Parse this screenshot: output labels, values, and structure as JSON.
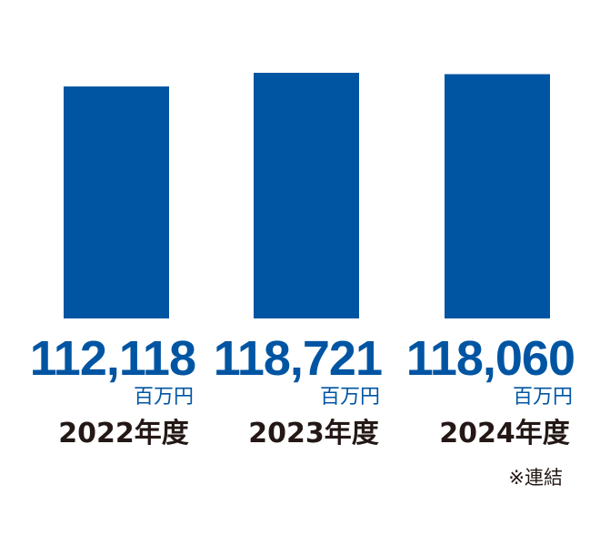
{
  "chart_data": {
    "type": "bar",
    "categories": [
      "2022年度",
      "2023年度",
      "2024年度"
    ],
    "values": [
      112118,
      118721,
      118060
    ],
    "value_labels": [
      "112,118",
      "118,721",
      "118,060"
    ],
    "unit": "百万円",
    "note": "※連結",
    "grid": false,
    "legend": "none",
    "colors": {
      "bar": "#0055A3",
      "value_text": "#0055A3",
      "category_text": "#231815",
      "note_text": "#231815"
    }
  }
}
